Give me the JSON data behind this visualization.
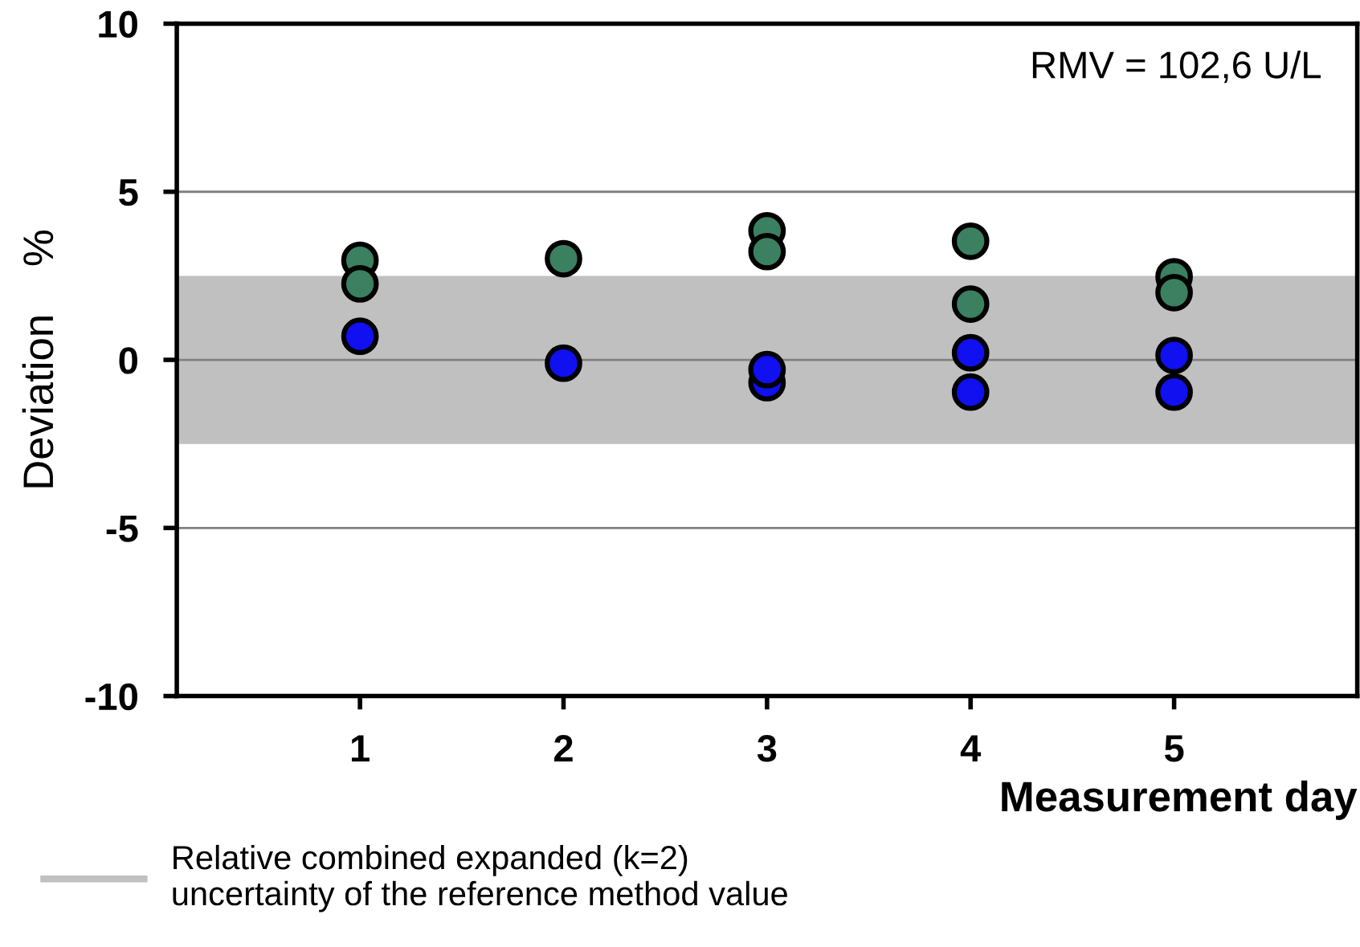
{
  "chart_data": {
    "type": "scatter",
    "xlabel": "Measurement day",
    "ylabel": "Deviation    %",
    "categories": [
      "1",
      "2",
      "3",
      "4",
      "5"
    ],
    "series": [
      {
        "color": "#3b8060",
        "x": [
          "1",
          "1",
          "2",
          "2",
          "3",
          "3",
          "4",
          "4",
          "5",
          "5"
        ],
        "values": [
          2.96,
          2.26,
          null,
          3.01,
          3.84,
          3.22,
          3.53,
          1.66,
          2.47,
          2.0
        ]
      },
      {
        "color": "#1010f0",
        "x": [
          "1",
          "1",
          "2",
          "2",
          "3",
          "3",
          "4",
          "4",
          "5",
          "5"
        ],
        "values": [
          0.7,
          null,
          null,
          -0.1,
          -0.68,
          -0.29,
          0.21,
          -0.96,
          0.13,
          -0.96
        ]
      }
    ],
    "ylim": [
      -10,
      10
    ],
    "yticks": [
      -10,
      -5,
      0,
      5,
      10
    ],
    "grid": "y",
    "marker": "circle",
    "bands": [
      {
        "axis": "y",
        "from": -2.5,
        "to": 2.5,
        "color": "#c0c0c0",
        "label": "Relative combined expanded (k=2)\nuncertainty of the reference method value"
      }
    ],
    "annotations": [
      "RMV = 102,6 U/L"
    ],
    "legend": "bottom left"
  }
}
